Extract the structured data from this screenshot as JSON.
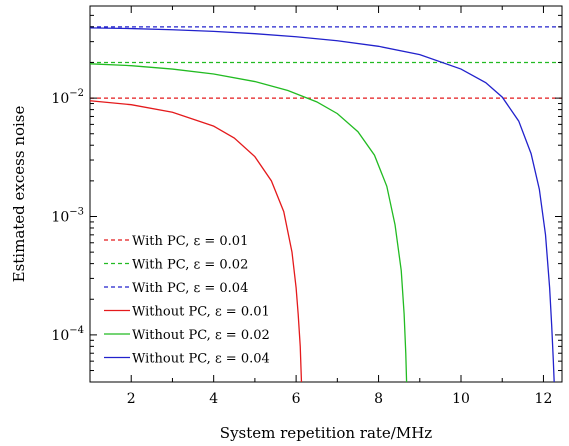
{
  "chart_data": {
    "type": "line",
    "xlabel": "System repetition rate/MHz",
    "ylabel": "Estimated excess noise",
    "x_scale": "linear",
    "y_scale": "log",
    "xlim": [
      1.0,
      12.45
    ],
    "ylim": [
      4e-05,
      0.06
    ],
    "x_ticks": [
      2,
      4,
      6,
      8,
      10,
      12
    ],
    "x_tick_labels": [
      "2",
      "4",
      "6",
      "8",
      "10",
      "12"
    ],
    "y_ticks": [
      0.0001,
      0.001,
      0.01
    ],
    "y_tick_labels": [
      {
        "base": "10",
        "exp": "−4"
      },
      {
        "base": "10",
        "exp": "−3"
      },
      {
        "base": "10",
        "exp": "−2"
      }
    ],
    "grid": false,
    "legend_position": "lower-left",
    "series": [
      {
        "name": "With PC, ε = 0.01",
        "color": "#e41a1c",
        "style": "dashed",
        "x": [
          1.0,
          12.45
        ],
        "y": [
          0.01,
          0.01
        ]
      },
      {
        "name": "With PC, ε = 0.02",
        "color": "#22bb22",
        "style": "dashed",
        "x": [
          1.0,
          12.45
        ],
        "y": [
          0.02,
          0.02
        ]
      },
      {
        "name": "With PC, ε = 0.04",
        "color": "#2222cc",
        "style": "dashed",
        "x": [
          1.0,
          12.45
        ],
        "y": [
          0.04,
          0.04
        ]
      },
      {
        "name": "Without PC, ε = 0.01",
        "color": "#e41a1c",
        "style": "solid",
        "x": [
          1.0,
          2.0,
          3.0,
          4.0,
          4.5,
          5.0,
          5.4,
          5.7,
          5.9,
          6.0,
          6.05,
          6.1,
          6.12,
          6.13
        ],
        "y": [
          0.0095,
          0.0088,
          0.0076,
          0.0058,
          0.0046,
          0.0032,
          0.002,
          0.0011,
          0.0005,
          0.00025,
          0.00015,
          8e-05,
          5e-05,
          4e-05
        ]
      },
      {
        "name": "Without PC, ε = 0.02",
        "color": "#22bb22",
        "style": "solid",
        "x": [
          1.0,
          2.0,
          3.0,
          4.0,
          5.0,
          5.8,
          6.5,
          7.0,
          7.5,
          7.9,
          8.2,
          8.4,
          8.55,
          8.62,
          8.66,
          8.68
        ],
        "y": [
          0.0195,
          0.0188,
          0.0176,
          0.016,
          0.0138,
          0.0116,
          0.0093,
          0.0074,
          0.0052,
          0.0033,
          0.0018,
          0.00085,
          0.00035,
          0.00015,
          7e-05,
          4e-05
        ]
      },
      {
        "name": "Without PC, ε = 0.04",
        "color": "#2222cc",
        "style": "solid",
        "x": [
          1.0,
          2.0,
          3.0,
          4.0,
          5.0,
          6.0,
          7.0,
          8.0,
          9.0,
          10.0,
          10.6,
          11.0,
          11.4,
          11.7,
          11.9,
          12.05,
          12.15,
          12.2,
          12.24,
          12.26
        ],
        "y": [
          0.0392,
          0.0387,
          0.0378,
          0.0366,
          0.035,
          0.033,
          0.0305,
          0.0274,
          0.0233,
          0.0176,
          0.0135,
          0.0102,
          0.0064,
          0.0034,
          0.0017,
          0.0007,
          0.00025,
          0.00012,
          6e-05,
          4e-05
        ]
      }
    ]
  }
}
